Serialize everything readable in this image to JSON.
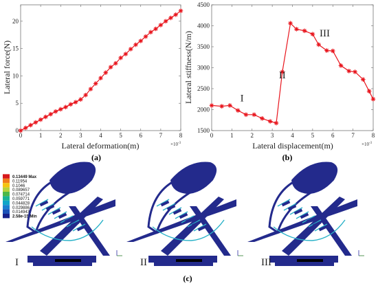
{
  "chart_data": [
    {
      "panel": "(a)",
      "type": "line",
      "xlabel": "Lateral deformation(m)",
      "ylabel": "Lateral force(N)",
      "x_multiplier": "×10",
      "x_multiplier_exp": "-3",
      "xlim": [
        0,
        8
      ],
      "ylim": [
        0,
        23
      ],
      "xticks": [
        "0",
        "1",
        "2",
        "3",
        "4",
        "5",
        "6",
        "7",
        "8"
      ],
      "yticks": [
        "0",
        "5",
        "10",
        "15",
        "20"
      ],
      "color": "#e8141c",
      "x": [
        0,
        0.25,
        0.5,
        0.75,
        1,
        1.25,
        1.5,
        1.75,
        2,
        2.25,
        2.5,
        2.75,
        3,
        3.25,
        3.5,
        3.75,
        4,
        4.25,
        4.5,
        4.75,
        5,
        5.25,
        5.5,
        5.75,
        6,
        6.25,
        6.5,
        6.75,
        7,
        7.25,
        7.5,
        7.75,
        8
      ],
      "y": [
        0,
        0.5,
        1.0,
        1.5,
        2.0,
        2.5,
        3.0,
        3.5,
        3.9,
        4.3,
        4.8,
        5.2,
        5.7,
        6.5,
        7.6,
        8.6,
        9.6,
        10.6,
        11.6,
        12.3,
        13.3,
        14.0,
        14.9,
        15.7,
        16.4,
        17.2,
        18.0,
        18.6,
        19.3,
        20.0,
        20.6,
        21.2,
        21.9
      ]
    },
    {
      "panel": "(b)",
      "type": "line",
      "xlabel": "Lateral displacement(m)",
      "ylabel": "Lateral stiffness(N/m)",
      "x_multiplier": "×10",
      "x_multiplier_exp": "-3",
      "xlim": [
        0,
        8
      ],
      "ylim": [
        1500,
        4500
      ],
      "xticks": [
        "0",
        "1",
        "2",
        "3",
        "4",
        "5",
        "6",
        "7",
        "8"
      ],
      "yticks": [
        "1500",
        "2000",
        "2500",
        "3000",
        "3500",
        "4000",
        "4500"
      ],
      "color": "#e8141c",
      "x": [
        0,
        0.5,
        0.9,
        1.3,
        1.7,
        2.1,
        2.5,
        2.9,
        3.2,
        3.5,
        3.9,
        4.2,
        4.6,
        5.0,
        5.3,
        5.7,
        6.0,
        6.4,
        6.8,
        7.1,
        7.5,
        7.8,
        8.0
      ],
      "y": [
        2100,
        2080,
        2100,
        1980,
        1880,
        1880,
        1790,
        1720,
        1680,
        2900,
        4060,
        3920,
        3880,
        3800,
        3550,
        3410,
        3400,
        3050,
        2920,
        2900,
        2720,
        2440,
        2250
      ],
      "annotations": [
        {
          "text": "I",
          "x": 1.5,
          "y": 2200
        },
        {
          "text": "II",
          "x": 3.5,
          "y": 2750
        },
        {
          "text": "III",
          "x": 5.6,
          "y": 3750
        }
      ]
    }
  ],
  "panel_c": {
    "label": "(c)",
    "legend_values": [
      "0.13449 Max",
      "0.11954",
      "0.1046",
      "0.089657",
      "0.074714",
      "0.059771",
      "0.044828",
      "0.029886",
      "0.014943",
      "2.58e-15 Min"
    ],
    "legend_colors": [
      "#d7191c",
      "#f07c1c",
      "#f5c311",
      "#b8d23c",
      "#4cb848",
      "#19b394",
      "#10a6c8",
      "#1b7fd0",
      "#1c52b8",
      "#16208a"
    ],
    "stage_labels": [
      "I",
      "II",
      "III"
    ],
    "model_color": "#232a8c",
    "contact_color": "#2ab2c8"
  }
}
